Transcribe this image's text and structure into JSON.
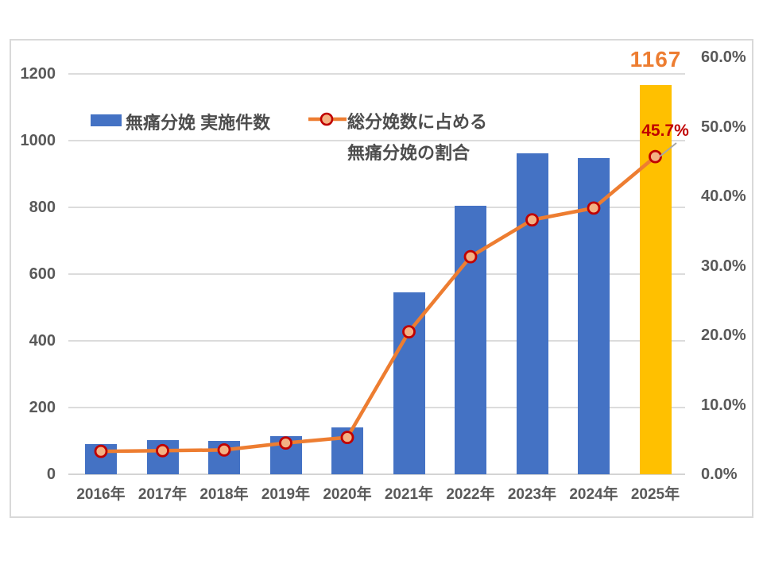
{
  "chart_data": {
    "type": "combo-bar-line",
    "categories": [
      "2016年",
      "2017年",
      "2018年",
      "2019年",
      "2020年",
      "2021年",
      "2022年",
      "2023年",
      "2024年",
      "2025年"
    ],
    "series": [
      {
        "name": "無痛分娩 実施件数",
        "type": "bar",
        "axis": "left",
        "color": "#4472C4",
        "highlight_last_color": "#FFC000",
        "values": [
          90,
          102,
          100,
          114,
          140,
          545,
          805,
          962,
          948,
          1167
        ]
      },
      {
        "name": "総分娩数に占める無痛分娩の割合",
        "type": "line",
        "axis": "right",
        "color": "#ED7D31",
        "marker_fill": "#F4B183",
        "marker_stroke": "#C00000",
        "values": [
          3.3,
          3.4,
          3.5,
          4.5,
          5.3,
          20.5,
          31.3,
          36.6,
          38.3,
          45.7
        ]
      }
    ],
    "left_axis": {
      "min": 0,
      "max": 1200,
      "step": 200,
      "tick_labels": [
        "0",
        "200",
        "400",
        "600",
        "800",
        "1000",
        "1200"
      ]
    },
    "right_axis": {
      "min": 0,
      "max": 60,
      "step": 10,
      "tick_labels": [
        "0.0%",
        "10.0%",
        "20.0%",
        "30.0%",
        "40.0%",
        "50.0%",
        "60.0%"
      ]
    },
    "grid": true,
    "legend_position": "top-inside",
    "annotations": [
      {
        "text": "1167",
        "target": "2025-bar-value",
        "color": "#ED7D31"
      },
      {
        "text": "45.7%",
        "target": "2025-line-value",
        "color": "#C00000"
      }
    ]
  },
  "legend": {
    "bar_label": "無痛分娩 実施件数",
    "line_label_line1": "総分娩数に占める",
    "line_label_line2": "無痛分娩の割合"
  },
  "colors": {
    "bar": "#4472C4",
    "bar_highlight": "#FFC000",
    "line": "#ED7D31",
    "marker_fill": "#F4B183",
    "marker_stroke": "#C00000",
    "axis_text": "#595959",
    "gridline": "#D9D9D9",
    "frame_border": "#D9D9D9",
    "background": "#FFFFFF",
    "leader_line": "#A6A6A6"
  }
}
